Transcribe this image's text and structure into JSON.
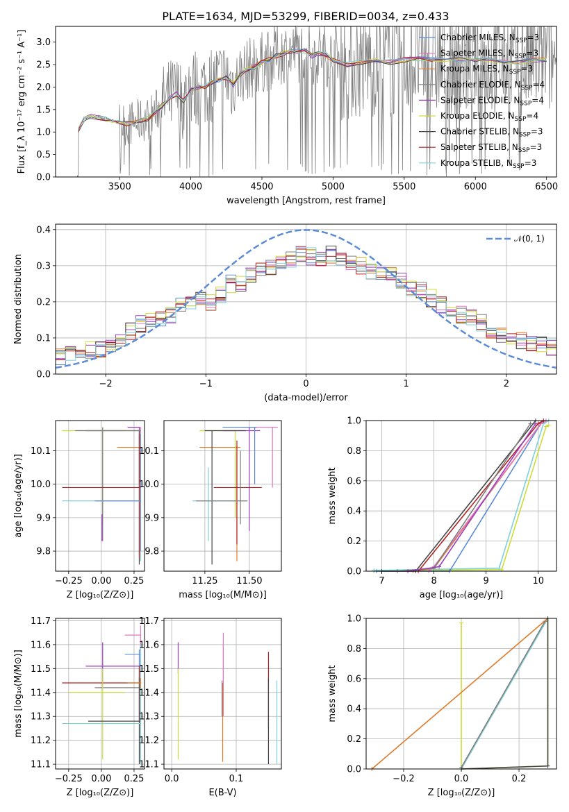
{
  "figure": {
    "title": "PLATE=1634, MJD=53299, FIBERID=0034, z=0.433"
  },
  "colors": {
    "Chabrier MILES": "#5b8bd6",
    "Salpeter MILES": "#e377c2",
    "Kroupa MILES": "#e07b2a",
    "Chabrier ELODIE": "#7f7f7f",
    "Salpeter ELODIE": "#9b3fbf",
    "Kroupa ELODIE": "#cddc39",
    "Chabrier STELIB": "#444444",
    "Salpeter STELIB": "#b22222",
    "Kroupa STELIB": "#80d0d8",
    "normal": "#5b8bd6"
  },
  "chart_data": [
    {
      "id": "spectrum",
      "type": "line",
      "xlabel": "wavelength [Angstrom, rest frame]",
      "ylabel": "Flux [f_λ 10⁻¹⁷ erg cm⁻² s⁻¹ A⁻¹]",
      "xlim": [
        3050,
        6570
      ],
      "ylim": [
        0,
        3.35
      ],
      "xticks": [
        3500,
        4000,
        4500,
        5000,
        5500,
        6000,
        6500
      ],
      "yticks": [
        0.0,
        0.5,
        1.0,
        1.5,
        2.0,
        2.5,
        3.0
      ],
      "grid": false,
      "legend_position": "top-right",
      "legend": [
        {
          "name": "Chabrier MILES, N",
          "sub": "SSP",
          "tail": "=3"
        },
        {
          "name": "Salpeter MILES, N",
          "sub": "SSP",
          "tail": "=3"
        },
        {
          "name": "Kroupa MILES, N",
          "sub": "SSP",
          "tail": "=3"
        },
        {
          "name": "Chabrier ELODIE, N",
          "sub": "SSP",
          "tail": "=4"
        },
        {
          "name": "Salpeter ELODIE, N",
          "sub": "SSP",
          "tail": "=4"
        },
        {
          "name": "Kroupa ELODIE, N",
          "sub": "SSP",
          "tail": "=4"
        },
        {
          "name": "Chabrier STELIB, N",
          "sub": "SSP",
          "tail": "=3"
        },
        {
          "name": "Salpeter STELIB, N",
          "sub": "SSP",
          "tail": "=3"
        },
        {
          "name": "Kroupa STELIB, N",
          "sub": "SSP",
          "tail": "=3"
        }
      ],
      "model_x": [
        3210,
        3250,
        3300,
        3350,
        3400,
        3450,
        3500,
        3550,
        3600,
        3650,
        3700,
        3750,
        3800,
        3850,
        3900,
        3950,
        4000,
        4050,
        4100,
        4150,
        4200,
        4250,
        4300,
        4350,
        4400,
        4450,
        4500,
        4550,
        4600,
        4650,
        4700,
        4750,
        4800,
        4850,
        4900,
        4950,
        5000,
        5100,
        5200,
        5300,
        5400,
        5500,
        5600,
        5700,
        5800,
        5900,
        6000,
        6100,
        6200,
        6300,
        6400,
        6500
      ],
      "model_y": [
        1.05,
        1.3,
        1.35,
        1.33,
        1.3,
        1.25,
        1.2,
        1.18,
        1.22,
        1.25,
        1.3,
        1.45,
        1.6,
        1.75,
        1.85,
        1.7,
        1.95,
        2.0,
        2.0,
        2.1,
        2.15,
        2.2,
        2.05,
        2.3,
        2.4,
        2.45,
        2.55,
        2.6,
        2.7,
        2.75,
        2.8,
        2.78,
        2.8,
        2.7,
        2.75,
        2.72,
        2.6,
        2.5,
        2.55,
        2.6,
        2.55,
        2.6,
        2.62,
        2.6,
        2.58,
        2.6,
        2.62,
        2.6,
        2.58,
        2.55,
        2.6,
        2.62
      ]
    },
    {
      "id": "residuals",
      "type": "line",
      "xlabel": "(data-model)/error",
      "ylabel": "Normed distribution",
      "xlim": [
        -2.5,
        2.5
      ],
      "ylim": [
        0,
        0.415
      ],
      "xticks": [
        -2,
        -1,
        0,
        1,
        2
      ],
      "yticks": [
        0.0,
        0.1,
        0.2,
        0.3,
        0.4
      ],
      "grid": true,
      "legend_position": "top-right",
      "legend": [
        "𝒩(0, 1)"
      ],
      "hist_bins": [
        -2.5,
        -2.4,
        -2.3,
        -2.2,
        -2.1,
        -2.0,
        -1.9,
        -1.8,
        -1.7,
        -1.6,
        -1.5,
        -1.4,
        -1.3,
        -1.2,
        -1.1,
        -1.0,
        -0.9,
        -0.8,
        -0.7,
        -0.6,
        -0.5,
        -0.4,
        -0.3,
        -0.2,
        -0.1,
        0.0,
        0.1,
        0.2,
        0.3,
        0.4,
        0.5,
        0.6,
        0.7,
        0.8,
        0.9,
        1.0,
        1.1,
        1.2,
        1.3,
        1.4,
        1.5,
        1.6,
        1.7,
        1.8,
        1.9,
        2.0,
        2.1,
        2.2,
        2.3,
        2.4,
        2.5
      ],
      "hist_mean": [
        0.045,
        0.055,
        0.06,
        0.065,
        0.07,
        0.085,
        0.09,
        0.12,
        0.14,
        0.155,
        0.15,
        0.165,
        0.19,
        0.2,
        0.21,
        0.2,
        0.22,
        0.25,
        0.25,
        0.27,
        0.29,
        0.3,
        0.31,
        0.32,
        0.33,
        0.325,
        0.32,
        0.33,
        0.31,
        0.305,
        0.3,
        0.285,
        0.28,
        0.27,
        0.255,
        0.24,
        0.23,
        0.21,
        0.19,
        0.18,
        0.165,
        0.155,
        0.14,
        0.12,
        0.11,
        0.1,
        0.09,
        0.085,
        0.08,
        0.075
      ]
    },
    {
      "id": "age-vs-Z",
      "type": "scatter",
      "xlabel": "Z [log₁₀(Z/Z⊙)]",
      "ylabel": "age  [log₁₀(age/yr)]",
      "xlim": [
        -0.35,
        0.33
      ],
      "ylim": [
        9.74,
        10.19
      ],
      "xticks": [
        -0.25,
        0.0,
        0.25
      ],
      "yticks": [
        9.8,
        9.9,
        10.0,
        10.1
      ],
      "grid": true
    },
    {
      "id": "age-vs-mass",
      "type": "scatter",
      "xlabel": "mass [log₁₀(M/M⊙)]",
      "ylabel": "",
      "xlim": [
        11.02,
        11.68
      ],
      "ylim": [
        9.74,
        10.19
      ],
      "xticks": [
        11.25,
        11.5
      ],
      "yticks": [
        9.8,
        9.9,
        10.0,
        10.1
      ],
      "grid": true
    },
    {
      "id": "cum-age",
      "type": "line",
      "xlabel": "age  [log₁₀(age/yr)]",
      "ylabel": "mass weight",
      "xlim": [
        6.7,
        10.35
      ],
      "ylim": [
        0,
        1.0
      ],
      "xticks": [
        7,
        8,
        9,
        10
      ],
      "yticks": [
        0.0,
        0.2,
        0.4,
        0.6,
        0.8,
        1.0
      ],
      "grid": true
    },
    {
      "id": "mass-vs-Z",
      "type": "scatter",
      "xlabel": "Z [log₁₀(Z/Z⊙)]",
      "ylabel": "mass [log₁₀(M/M⊙)]",
      "xlim": [
        -0.35,
        0.33
      ],
      "ylim": [
        11.08,
        11.71
      ],
      "xticks": [
        -0.25,
        0.0,
        0.25
      ],
      "yticks": [
        11.1,
        11.2,
        11.3,
        11.4,
        11.5,
        11.6,
        11.7
      ],
      "grid": true
    },
    {
      "id": "mass-vs-ebv",
      "type": "scatter",
      "xlabel": "E(B-V)",
      "ylabel": "",
      "xlim": [
        -0.012,
        0.17
      ],
      "ylim": [
        11.08,
        11.71
      ],
      "xticks": [
        0.0,
        0.1
      ],
      "yticks": [
        11.1,
        11.2,
        11.3,
        11.4,
        11.5,
        11.6,
        11.7
      ],
      "grid": true
    },
    {
      "id": "cum-Z",
      "type": "line",
      "xlabel": "Z [log₁₀(Z/Z⊙)]",
      "ylabel": "mass weight",
      "xlim": [
        -0.33,
        0.33
      ],
      "ylim": [
        0,
        1.0
      ],
      "xticks": [
        -0.2,
        0.0,
        0.2
      ],
      "yticks": [
        0.0,
        0.2,
        0.4,
        0.6,
        0.8,
        1.0
      ],
      "grid": true
    }
  ]
}
